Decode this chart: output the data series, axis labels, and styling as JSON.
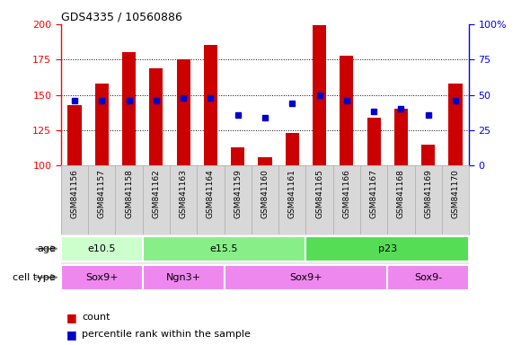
{
  "title": "GDS4335 / 10560886",
  "samples": [
    "GSM841156",
    "GSM841157",
    "GSM841158",
    "GSM841162",
    "GSM841163",
    "GSM841164",
    "GSM841159",
    "GSM841160",
    "GSM841161",
    "GSM841165",
    "GSM841166",
    "GSM841167",
    "GSM841168",
    "GSM841169",
    "GSM841170"
  ],
  "count_values": [
    143,
    158,
    180,
    169,
    175,
    185,
    113,
    106,
    123,
    199,
    178,
    134,
    140,
    115,
    158
  ],
  "percentile_values": [
    46,
    46,
    46,
    46,
    48,
    48,
    36,
    34,
    44,
    50,
    46,
    38,
    40,
    36,
    46
  ],
  "ymin": 100,
  "ymax": 200,
  "yleft_ticks": [
    100,
    125,
    150,
    175,
    200
  ],
  "yright_ticks": [
    0,
    25,
    50,
    75,
    100
  ],
  "bar_color": "#cc0000",
  "dot_color": "#0000cc",
  "age_groups": [
    {
      "label": "e10.5",
      "start": 0,
      "end": 3,
      "color": "#ccffcc"
    },
    {
      "label": "e15.5",
      "start": 3,
      "end": 9,
      "color": "#88ee88"
    },
    {
      "label": "p23",
      "start": 9,
      "end": 15,
      "color": "#55dd55"
    }
  ],
  "cell_groups": [
    {
      "label": "Sox9+",
      "start": 0,
      "end": 3,
      "color": "#ee88ee"
    },
    {
      "label": "Ngn3+",
      "start": 3,
      "end": 6,
      "color": "#ee88ee"
    },
    {
      "label": "Sox9+",
      "start": 6,
      "end": 12,
      "color": "#ee88ee"
    },
    {
      "label": "Sox9-",
      "start": 12,
      "end": 15,
      "color": "#ee88ee"
    }
  ],
  "age_label": "age",
  "cell_label": "cell type",
  "legend_count": "count",
  "legend_pct": "percentile rank within the sample",
  "plot_bg": "#ffffff",
  "xtick_bg": "#d8d8d8",
  "grid_color": "#000000"
}
